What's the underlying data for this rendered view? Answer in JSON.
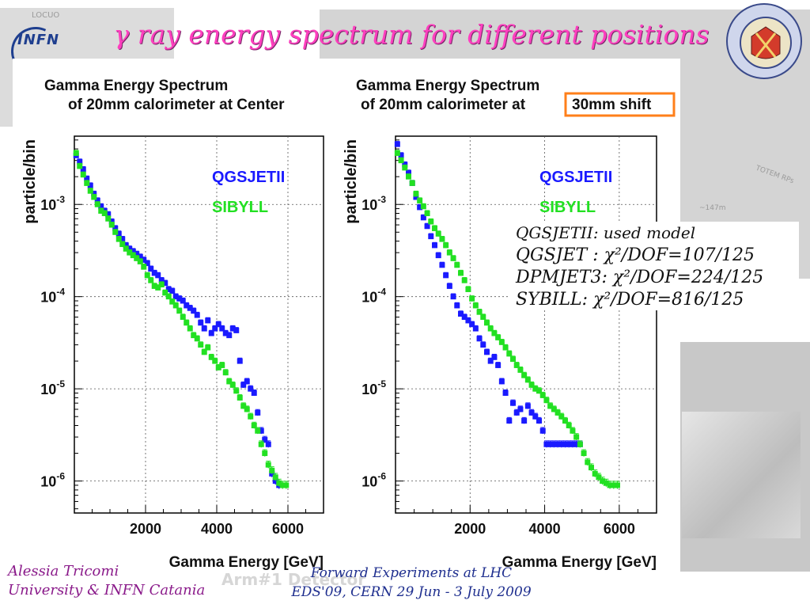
{
  "slide": {
    "title": "γ ray energy spectrum for different positions",
    "infn_logo_text": "INFN",
    "seal_text": "SIGILLUM UNIVERSITATIS STUDIORUM CATANAE 1434",
    "background_label_a": "TOTEM RPs",
    "background_label_b": "~147m",
    "background_label_c": "LOCUO"
  },
  "models_box": {
    "line1": "QGSJETII: used model",
    "line2": "QGSJET : χ²/DOF=107/125",
    "line3": "DPMJET3: χ²/DOF=224/125",
    "line4": "SYBILL: χ²/DOF=816/125"
  },
  "footer": {
    "author": "Alessia Tricomi",
    "affiliation": "University & INFN Catania",
    "conference": "Forward Experiments at LHC",
    "event": "EDS'09, CERN 29 Jun - 3 July 2009",
    "ghost": "Arm#1 Detector"
  },
  "colors": {
    "title": "#ff3fbf",
    "qgsjet": "#1a1aff",
    "sibyll": "#22e022",
    "highlight_box": "#ff7f1a",
    "footer_author": "#8a1a8a",
    "footer_event": "#1f2f8f"
  },
  "chart_data": [
    {
      "type": "scatter",
      "title": "Gamma Energy Spectrum of 20mm calorimeter at Center",
      "title_line1": "Gamma Energy Spectrum",
      "title_line2": "of 20mm calorimeter at Center",
      "xlabel": "Gamma Energy [GeV]",
      "ylabel": "particle/bin",
      "xlim": [
        0,
        7000
      ],
      "ylim": [
        4.5e-07,
        0.0055
      ],
      "yscale": "log",
      "grid": true,
      "legend_position": "top-right",
      "x_ticks": [
        2000,
        4000,
        6000
      ],
      "x_tick_labels": [
        "2000",
        "4000",
        "6000"
      ],
      "y_ticks": [
        1e-06,
        1e-05,
        0.0001,
        0.001
      ],
      "y_tick_labels": [
        [
          "10",
          "-6"
        ],
        [
          "10",
          "-5"
        ],
        [
          "10",
          "-4"
        ],
        [
          "10",
          "-3"
        ]
      ],
      "series": [
        {
          "name": "QGSJETII",
          "color": "#1a1aff",
          "points": [
            [
              50,
              0.0034
            ],
            [
              150,
              0.0029
            ],
            [
              250,
              0.0024
            ],
            [
              350,
              0.0019
            ],
            [
              450,
              0.0016
            ],
            [
              550,
              0.0013
            ],
            [
              650,
              0.0011
            ],
            [
              750,
              0.00095
            ],
            [
              850,
              0.00085
            ],
            [
              950,
              0.00078
            ],
            [
              1050,
              0.00065
            ],
            [
              1150,
              0.00055
            ],
            [
              1250,
              0.00048
            ],
            [
              1350,
              0.00042
            ],
            [
              1450,
              0.00036
            ],
            [
              1550,
              0.00033
            ],
            [
              1650,
              0.00031
            ],
            [
              1750,
              0.00029
            ],
            [
              1850,
              0.00027
            ],
            [
              1950,
              0.00025
            ],
            [
              2050,
              0.00023
            ],
            [
              2150,
              0.0002
            ],
            [
              2250,
              0.00018
            ],
            [
              2350,
              0.00017
            ],
            [
              2450,
              0.00015
            ],
            [
              2550,
              0.00014
            ],
            [
              2650,
              0.00012
            ],
            [
              2750,
              0.000115
            ],
            [
              2850,
              0.0001
            ],
            [
              2950,
              9.5e-05
            ],
            [
              3050,
              9e-05
            ],
            [
              3150,
              8e-05
            ],
            [
              3250,
              7.5e-05
            ],
            [
              3350,
              7e-05
            ],
            [
              3450,
              6.3e-05
            ],
            [
              3550,
              5.2e-05
            ],
            [
              3650,
              4.5e-05
            ],
            [
              3750,
              5.5e-05
            ],
            [
              3850,
              4e-05
            ],
            [
              3950,
              4.5e-05
            ],
            [
              4050,
              5e-05
            ],
            [
              4150,
              4.5e-05
            ],
            [
              4250,
              4e-05
            ],
            [
              4350,
              3.8e-05
            ],
            [
              4450,
              4.5e-05
            ],
            [
              4550,
              4.3e-05
            ],
            [
              4650,
              2e-05
            ],
            [
              4750,
              1.1e-05
            ],
            [
              4850,
              1.2e-05
            ],
            [
              4950,
              1e-05
            ],
            [
              5050,
              9e-06
            ],
            [
              5150,
              5.5e-06
            ],
            [
              5250,
              3.5e-06
            ],
            [
              5350,
              2.8e-06
            ],
            [
              5450,
              2.5e-06
            ],
            [
              5550,
              1.2e-06
            ],
            [
              5650,
              1e-06
            ],
            [
              5750,
              9e-07
            ]
          ]
        },
        {
          "name": "SIBYLL",
          "color": "#22e022",
          "points": [
            [
              50,
              0.0036
            ],
            [
              150,
              0.0026
            ],
            [
              250,
              0.0021
            ],
            [
              350,
              0.0017
            ],
            [
              450,
              0.0014
            ],
            [
              550,
              0.0012
            ],
            [
              650,
              0.001
            ],
            [
              750,
              0.00085
            ],
            [
              850,
              0.0008
            ],
            [
              950,
              0.0007
            ],
            [
              1050,
              0.0006
            ],
            [
              1150,
              0.0005
            ],
            [
              1250,
              0.00042
            ],
            [
              1350,
              0.00037
            ],
            [
              1450,
              0.00033
            ],
            [
              1550,
              0.0003
            ],
            [
              1650,
              0.00028
            ],
            [
              1750,
              0.00026
            ],
            [
              1850,
              0.00024
            ],
            [
              1950,
              0.00021
            ],
            [
              2050,
              0.00017
            ],
            [
              2150,
              0.00015
            ],
            [
              2250,
              0.00013
            ],
            [
              2350,
              0.000125
            ],
            [
              2450,
              0.000135
            ],
            [
              2550,
              0.00011
            ],
            [
              2650,
              0.0001
            ],
            [
              2750,
              8.8e-05
            ],
            [
              2850,
              8e-05
            ],
            [
              2950,
              7e-05
            ],
            [
              3050,
              6e-05
            ],
            [
              3150,
              5.2e-05
            ],
            [
              3250,
              4.5e-05
            ],
            [
              3350,
              3.8e-05
            ],
            [
              3450,
              3.5e-05
            ],
            [
              3550,
              3e-05
            ],
            [
              3650,
              2.5e-05
            ],
            [
              3750,
              2.8e-05
            ],
            [
              3850,
              2.2e-05
            ],
            [
              3950,
              2e-05
            ],
            [
              4050,
              1.7e-05
            ],
            [
              4150,
              1.8e-05
            ],
            [
              4250,
              1.5e-05
            ],
            [
              4350,
              1.2e-05
            ],
            [
              4450,
              1.1e-05
            ],
            [
              4550,
              9.5e-06
            ],
            [
              4650,
              8e-06
            ],
            [
              4750,
              6.5e-06
            ],
            [
              4850,
              6e-06
            ],
            [
              4950,
              5e-06
            ],
            [
              5050,
              4e-06
            ],
            [
              5150,
              3.5e-06
            ],
            [
              5250,
              2.5e-06
            ],
            [
              5350,
              2e-06
            ],
            [
              5450,
              1.5e-06
            ],
            [
              5550,
              1.3e-06
            ],
            [
              5650,
              1.1e-06
            ],
            [
              5750,
              9.5e-07
            ],
            [
              5850,
              9e-07
            ],
            [
              5950,
              9e-07
            ]
          ]
        }
      ]
    },
    {
      "type": "scatter",
      "title": "Gamma Energy Spectrum of 20mm calorimeter at 30mm shift",
      "title_line1": "Gamma Energy Spectrum",
      "title_line2_prefix": "of 20mm calorimeter at",
      "title_line2_highlight": "30mm shift",
      "xlabel": "Gamma Energy [GeV]",
      "ylabel": "particle/bin",
      "xlim": [
        0,
        7000
      ],
      "ylim": [
        4.5e-07,
        0.0055
      ],
      "yscale": "log",
      "grid": true,
      "legend_position": "top-right",
      "x_ticks": [
        2000,
        4000,
        6000
      ],
      "x_tick_labels": [
        "2000",
        "4000",
        "6000"
      ],
      "y_ticks": [
        1e-06,
        1e-05,
        0.0001,
        0.001
      ],
      "y_tick_labels": [
        [
          "10",
          "-6"
        ],
        [
          "10",
          "-5"
        ],
        [
          "10",
          "-4"
        ],
        [
          "10",
          "-3"
        ]
      ],
      "series": [
        {
          "name": "QGSJETII",
          "color": "#1a1aff",
          "points": [
            [
              50,
              0.0045
            ],
            [
              150,
              0.0034
            ],
            [
              250,
              0.0027
            ],
            [
              350,
              0.0022
            ],
            [
              450,
              0.0017
            ],
            [
              550,
              0.0012
            ],
            [
              650,
              0.00093
            ],
            [
              750,
              0.00072
            ],
            [
              850,
              0.00058
            ],
            [
              950,
              0.00045
            ],
            [
              1050,
              0.00036
            ],
            [
              1150,
              0.00028
            ],
            [
              1250,
              0.00022
            ],
            [
              1350,
              0.00017
            ],
            [
              1450,
              0.00013
            ],
            [
              1550,
              0.0001
            ],
            [
              1650,
              8e-05
            ],
            [
              1750,
              6.5e-05
            ],
            [
              1850,
              6e-05
            ],
            [
              1950,
              5.5e-05
            ],
            [
              2050,
              5e-05
            ],
            [
              2150,
              4.5e-05
            ],
            [
              2250,
              3.5e-05
            ],
            [
              2350,
              3e-05
            ],
            [
              2450,
              2.5e-05
            ],
            [
              2550,
              2e-05
            ],
            [
              2650,
              2.2e-05
            ],
            [
              2750,
              1.8e-05
            ],
            [
              2850,
              1.2e-05
            ],
            [
              2950,
              9e-06
            ],
            [
              3050,
              4.5e-06
            ],
            [
              3150,
              7e-06
            ],
            [
              3250,
              5.5e-06
            ],
            [
              3350,
              6e-06
            ],
            [
              3450,
              4.5e-06
            ],
            [
              3550,
              6.5e-06
            ],
            [
              3650,
              5.5e-06
            ],
            [
              3750,
              5e-06
            ],
            [
              3850,
              4.5e-06
            ],
            [
              3950,
              3.5e-06
            ],
            [
              4050,
              2.5e-06
            ],
            [
              4150,
              2.5e-06
            ],
            [
              4250,
              2.5e-06
            ],
            [
              4350,
              2.5e-06
            ],
            [
              4450,
              2.5e-06
            ],
            [
              4550,
              2.5e-06
            ],
            [
              4650,
              2.5e-06
            ],
            [
              4750,
              2.5e-06
            ],
            [
              4850,
              2.5e-06
            ],
            [
              4950,
              2.5e-06
            ]
          ]
        },
        {
          "name": "SIBYLL",
          "color": "#22e022",
          "points": [
            [
              50,
              0.0036
            ],
            [
              150,
              0.003
            ],
            [
              250,
              0.0025
            ],
            [
              350,
              0.002
            ],
            [
              450,
              0.0017
            ],
            [
              550,
              0.0013
            ],
            [
              650,
              0.0011
            ],
            [
              750,
              0.00095
            ],
            [
              850,
              0.0008
            ],
            [
              950,
              0.00065
            ],
            [
              1050,
              0.00055
            ],
            [
              1150,
              0.00048
            ],
            [
              1250,
              0.00042
            ],
            [
              1350,
              0.00036
            ],
            [
              1450,
              0.0003
            ],
            [
              1550,
              0.00026
            ],
            [
              1650,
              0.00022
            ],
            [
              1750,
              0.00018
            ],
            [
              1850,
              0.00015
            ],
            [
              1950,
              0.00012
            ],
            [
              2050,
              9.5e-05
            ],
            [
              2150,
              8e-05
            ],
            [
              2250,
              6.8e-05
            ],
            [
              2350,
              6e-05
            ],
            [
              2450,
              5.2e-05
            ],
            [
              2550,
              4.5e-05
            ],
            [
              2650,
              4e-05
            ],
            [
              2750,
              3.6e-05
            ],
            [
              2850,
              3.2e-05
            ],
            [
              2950,
              2.8e-05
            ],
            [
              3050,
              2.4e-05
            ],
            [
              3150,
              2.1e-05
            ],
            [
              3250,
              1.8e-05
            ],
            [
              3350,
              1.6e-05
            ],
            [
              3450,
              1.4e-05
            ],
            [
              3550,
              1.25e-05
            ],
            [
              3650,
              1.1e-05
            ],
            [
              3750,
              1e-05
            ],
            [
              3850,
              9.5e-06
            ],
            [
              3950,
              8.5e-06
            ],
            [
              4050,
              7.5e-06
            ],
            [
              4150,
              6.5e-06
            ],
            [
              4250,
              6e-06
            ],
            [
              4350,
              5.5e-06
            ],
            [
              4450,
              5e-06
            ],
            [
              4550,
              4.5e-06
            ],
            [
              4650,
              4e-06
            ],
            [
              4750,
              3.5e-06
            ],
            [
              4850,
              3e-06
            ],
            [
              4950,
              2.5e-06
            ],
            [
              5050,
              2e-06
            ],
            [
              5150,
              1.6e-06
            ],
            [
              5250,
              1.4e-06
            ],
            [
              5350,
              1.2e-06
            ],
            [
              5450,
              1.1e-06
            ],
            [
              5550,
              1e-06
            ],
            [
              5650,
              9.5e-07
            ],
            [
              5750,
              9e-07
            ],
            [
              5850,
              9e-07
            ],
            [
              5950,
              9e-07
            ]
          ]
        }
      ]
    }
  ]
}
